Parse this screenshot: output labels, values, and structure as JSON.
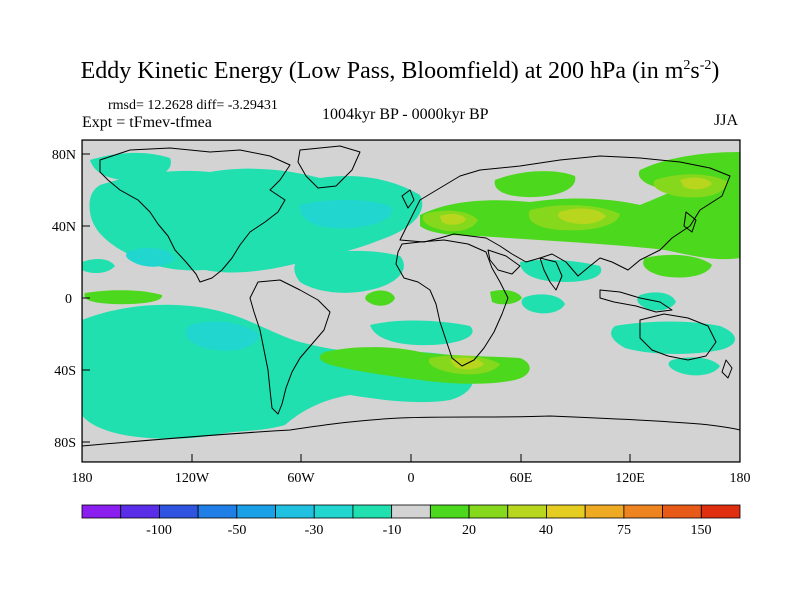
{
  "title": {
    "main": "Eddy Kinetic Energy (Low Pass, Bloomfield) at 200 hPa (in m",
    "sup1": "2",
    "mid": "s",
    "sup2": "-2",
    "end": ")"
  },
  "stats": "rmsd= 12.2628 diff= -3.29431",
  "experiment": "Expt = tFmev-tfmea",
  "period": "1004kyr BP - 0000kyr BP",
  "season": "JJA",
  "map": {
    "lat_labels": [
      "80N",
      "40N",
      "0",
      "40S",
      "80S"
    ],
    "lon_labels": [
      "180",
      "120W",
      "60W",
      "0",
      "60E",
      "120E",
      "180"
    ],
    "land_color": "#d3d3d3",
    "coast_color": "#000000"
  },
  "colorbar": {
    "colors": [
      "#8a1ff0",
      "#5a2ee8",
      "#2f55e0",
      "#1f7fe6",
      "#1aa0e6",
      "#20c0e0",
      "#22d6d0",
      "#20e0b0",
      "#d3d3d3",
      "#4cd81c",
      "#86d81c",
      "#b8d61e",
      "#e4cc20",
      "#eeaa22",
      "#ee8420",
      "#e85a18",
      "#e02e10"
    ],
    "labels": [
      "-100",
      "-50",
      "-30",
      "-10",
      "20",
      "40",
      "75",
      "150"
    ]
  }
}
